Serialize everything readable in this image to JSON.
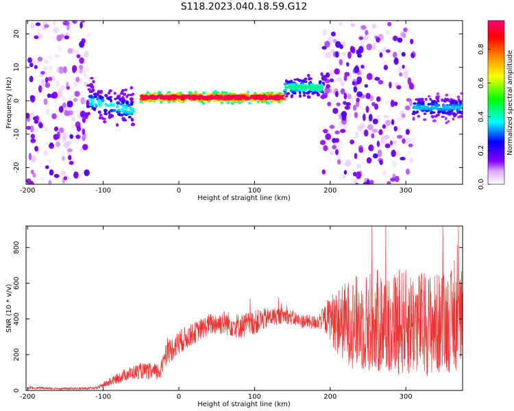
{
  "figure": {
    "title": "S118.2023.040.18.59.G12"
  },
  "chart_data": [
    {
      "type": "heatmap",
      "xlabel": "Height of straight line (km)",
      "ylabel": "Frequency (Hz)",
      "xlim": [
        -202,
        375
      ],
      "ylim": [
        -25,
        24
      ],
      "xticks": [
        -200,
        -100,
        0,
        100,
        200,
        300
      ],
      "yticks": [
        -20,
        -10,
        0,
        10,
        20
      ],
      "grid": false,
      "colorbar": {
        "label": "Normalized spectral amplitude",
        "range": [
          0.0,
          0.97
        ],
        "ticks": [
          "0.0",
          "0.2",
          "0.4",
          "0.6",
          "0.8"
        ],
        "colormap": [
          "#ffffff",
          "#8800ff",
          "#0000ff",
          "#00ffff",
          "#00ff00",
          "#ffff00",
          "#ff8800",
          "#ff0000",
          "#ff0080"
        ]
      },
      "features": [
        {
          "region": "-200 to -120 km",
          "frequency_center_hz": 0,
          "frequency_spread_hz": 24,
          "max_amplitude": 0.2
        },
        {
          "region": "-120 to -60 km",
          "frequency_center_hz": 0,
          "frequency_spread_hz": 6,
          "max_amplitude": 0.4
        },
        {
          "region": "-50 to 140 km",
          "frequency_center_hz": 1,
          "frequency_spread_hz": 1.5,
          "max_amplitude": 0.97
        },
        {
          "region": "140 to 190 km",
          "frequency_center_hz": 4,
          "frequency_spread_hz": 3,
          "max_amplitude": 0.45
        },
        {
          "region": "190 to 310 km",
          "frequency_center_hz": 4,
          "frequency_spread_hz": 22,
          "max_amplitude": 0.2
        },
        {
          "region": "310 to 375 km",
          "frequency_center_hz": -2,
          "frequency_spread_hz": 4,
          "max_amplitude": 0.35
        }
      ]
    },
    {
      "type": "line",
      "xlabel": "Height of straight line (km)",
      "ylabel": "SNR (10 * v/v)",
      "xlim": [
        -202,
        375
      ],
      "ylim": [
        0,
        920
      ],
      "xticks": [
        -200,
        -100,
        0,
        100,
        200,
        300
      ],
      "yticks": [
        0,
        200,
        400,
        600,
        800
      ],
      "grid": false,
      "series": [
        {
          "color": "#ee3333",
          "x": [
            -200,
            -150,
            -110,
            -90,
            -70,
            -50,
            -30,
            -22,
            -20,
            -10,
            0,
            20,
            40,
            60,
            80,
            100,
            120,
            140,
            160,
            180,
            190,
            200,
            210,
            230,
            260,
            300,
            340,
            375
          ],
          "y": [
            15,
            10,
            12,
            50,
            90,
            110,
            100,
            120,
            200,
            230,
            270,
            320,
            370,
            380,
            360,
            380,
            410,
            420,
            390,
            380,
            400,
            410,
            380,
            380,
            380,
            380,
            370,
            400
          ],
          "noise_amplitude": [
            8,
            6,
            8,
            25,
            35,
            45,
            50,
            60,
            70,
            70,
            70,
            60,
            60,
            70,
            70,
            70,
            55,
            45,
            40,
            40,
            60,
            130,
            190,
            260,
            300,
            300,
            290,
            290
          ]
        }
      ]
    }
  ]
}
